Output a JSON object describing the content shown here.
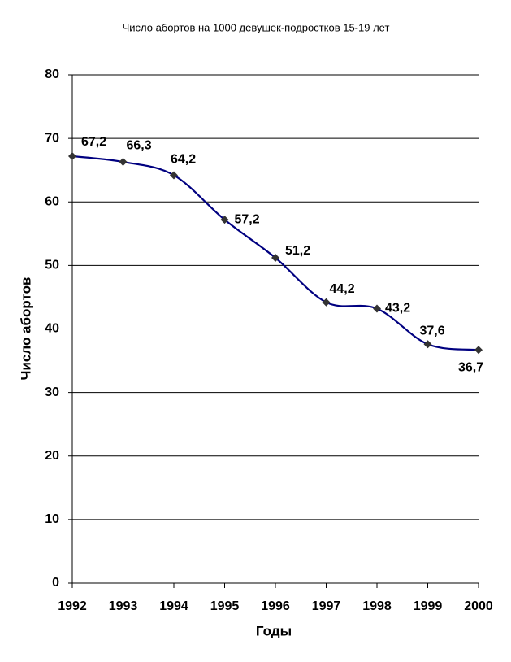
{
  "chart_data": {
    "type": "line",
    "title": "Число абортов на 1000 девушек-подростков 15-19 лет",
    "x_label": "Годы",
    "y_label": "Число абортов",
    "x": [
      1992,
      1993,
      1994,
      1995,
      1996,
      1997,
      1998,
      1999,
      2000
    ],
    "xlim": [
      1992,
      2000
    ],
    "xticks": [
      1992,
      1993,
      1994,
      1995,
      1996,
      1997,
      1998,
      1999,
      2000
    ],
    "ylim": [
      0,
      80
    ],
    "yticks": [
      0,
      10,
      20,
      30,
      40,
      50,
      60,
      70,
      80
    ],
    "grid": true,
    "smooth": true,
    "series": [
      {
        "color": "#000080",
        "marker_color": "#333333",
        "values": [
          67.2,
          66.3,
          64.2,
          57.2,
          51.2,
          44.2,
          43.2,
          37.6,
          36.7
        ],
        "value_labels": [
          "67,2",
          "66,3",
          "64,2",
          "57,2",
          "51,2",
          "44,2",
          "43,2",
          "37,6",
          "36,7"
        ]
      }
    ]
  }
}
